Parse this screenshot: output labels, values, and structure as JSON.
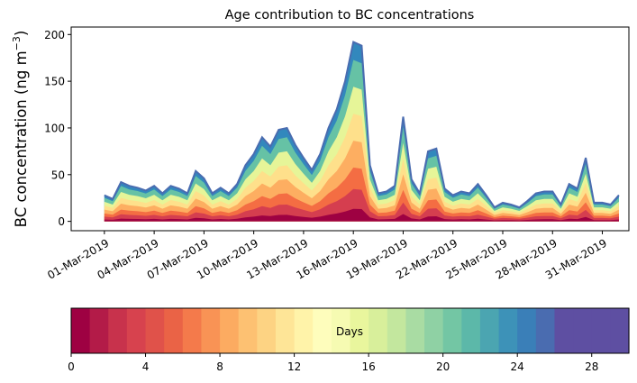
{
  "chart_data": {
    "type": "area",
    "title": "Age contribution to BC concentrations",
    "ylabel_main": "BC concentration (ng m",
    "ylabel_sup": "−3",
    "ylabel_close": ")",
    "xlabel": "",
    "ylim": [
      -10,
      208
    ],
    "yticks": [
      0,
      50,
      100,
      150,
      200
    ],
    "x_start_day": -1,
    "x_end_day": 32.6,
    "xticks": [
      {
        "day": 1,
        "label": "01-Mar-2019"
      },
      {
        "day": 4,
        "label": "04-Mar-2019"
      },
      {
        "day": 7,
        "label": "07-Mar-2019"
      },
      {
        "day": 10,
        "label": "10-Mar-2019"
      },
      {
        "day": 13,
        "label": "13-Mar-2019"
      },
      {
        "day": 16,
        "label": "16-Mar-2019"
      },
      {
        "day": 19,
        "label": "19-Mar-2019"
      },
      {
        "day": 22,
        "label": "22-Mar-2019"
      },
      {
        "day": 25,
        "label": "25-Mar-2019"
      },
      {
        "day": 28,
        "label": "28-Mar-2019"
      },
      {
        "day": 31,
        "label": "31-Mar-2019"
      }
    ],
    "x_days": [
      1,
      1.5,
      2,
      2.5,
      3,
      3.5,
      4,
      4.5,
      5,
      5.5,
      6,
      6.5,
      7,
      7.5,
      8,
      8.5,
      9,
      9.5,
      10,
      10.5,
      11,
      11.5,
      12,
      12.5,
      13,
      13.5,
      14,
      14.5,
      15,
      15.5,
      16,
      16.5,
      17,
      17.5,
      18,
      18.5,
      19,
      19.5,
      20,
      20.5,
      21,
      21.5,
      22,
      22.5,
      23,
      23.5,
      24,
      24.5,
      25,
      25.5,
      26,
      26.5,
      27,
      27.5,
      28,
      28.5,
      29,
      29.5,
      30,
      30.5,
      31,
      31.5,
      32
    ],
    "total": [
      28,
      24,
      42,
      38,
      36,
      33,
      38,
      30,
      38,
      35,
      30,
      54,
      46,
      30,
      36,
      30,
      40,
      60,
      72,
      90,
      80,
      98,
      100,
      82,
      68,
      55,
      72,
      100,
      120,
      150,
      192,
      188,
      60,
      30,
      32,
      38,
      112,
      45,
      30,
      75,
      78,
      35,
      28,
      32,
      30,
      40,
      28,
      15,
      20,
      18,
      15,
      22,
      30,
      32,
      32,
      18,
      40,
      35,
      68,
      20,
      20,
      18,
      28
    ],
    "age_fractions": [
      0.07,
      0.18,
      0.3,
      0.45,
      0.6,
      0.75,
      0.9,
      1.0
    ],
    "colorbar": {
      "label": "Days",
      "min": 0,
      "max": 30,
      "ticks": [
        0,
        4,
        8,
        12,
        16,
        20,
        24,
        28
      ],
      "colors": [
        "#9e0142",
        "#b31b48",
        "#c8324c",
        "#d7424e",
        "#e0524a",
        "#ea6346",
        "#f47a4b",
        "#f99355",
        "#fcab61",
        "#fdc172",
        "#fdd383",
        "#fee597",
        "#fff3a9",
        "#fefdbc",
        "#f6fbb2",
        "#e9f69d",
        "#d8ef9b",
        "#c3e79e",
        "#a9dca3",
        "#8fd1a4",
        "#73c6a4",
        "#5cb8a9",
        "#4ba5b1",
        "#3d92b8",
        "#3a7fb8",
        "#4a6cb0",
        "#5e4fa2",
        "#5e4fa2",
        "#5e4fa2",
        "#5e4fa2"
      ]
    }
  }
}
